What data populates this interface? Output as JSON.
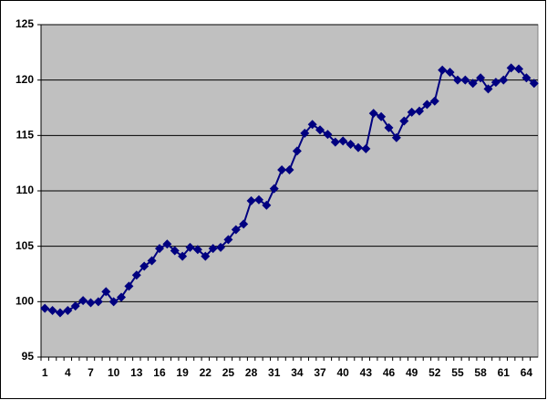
{
  "chart_data": {
    "type": "line",
    "categories": [
      1,
      null,
      null,
      4,
      null,
      null,
      7,
      null,
      null,
      10,
      null,
      null,
      13,
      null,
      null,
      16,
      null,
      null,
      19,
      null,
      null,
      22,
      null,
      null,
      25,
      null,
      null,
      28,
      null,
      null,
      31,
      null,
      null,
      34,
      null,
      null,
      37,
      null,
      null,
      40,
      null,
      null,
      43,
      null,
      null,
      46,
      null,
      null,
      49,
      null,
      null,
      52,
      null,
      null,
      55,
      null,
      null,
      58,
      null,
      null,
      61,
      null,
      null,
      64,
      null
    ],
    "values": [
      99.4,
      99.2,
      99.0,
      99.2,
      99.6,
      100.1,
      99.9,
      100.0,
      100.9,
      100.0,
      100.4,
      101.4,
      102.4,
      103.2,
      103.7,
      104.8,
      105.2,
      104.6,
      104.1,
      104.9,
      104.7,
      104.1,
      104.8,
      104.9,
      105.6,
      106.5,
      107.0,
      109.1,
      109.2,
      108.7,
      110.2,
      111.9,
      111.9,
      113.6,
      115.2,
      116.0,
      115.5,
      115.1,
      114.4,
      114.5,
      114.2,
      113.9,
      113.8,
      117.0,
      116.7,
      115.7,
      114.8,
      116.3,
      117.1,
      117.2,
      117.8,
      118.1,
      120.9,
      120.7,
      120.0,
      120.0,
      119.7,
      120.2,
      119.2,
      119.8,
      120.0,
      121.1,
      121.0,
      120.2,
      119.7
    ],
    "color": "#000080",
    "ylim": [
      95,
      125
    ],
    "yticks": [
      95,
      100,
      105,
      110,
      115,
      120,
      125
    ],
    "grid": true
  }
}
